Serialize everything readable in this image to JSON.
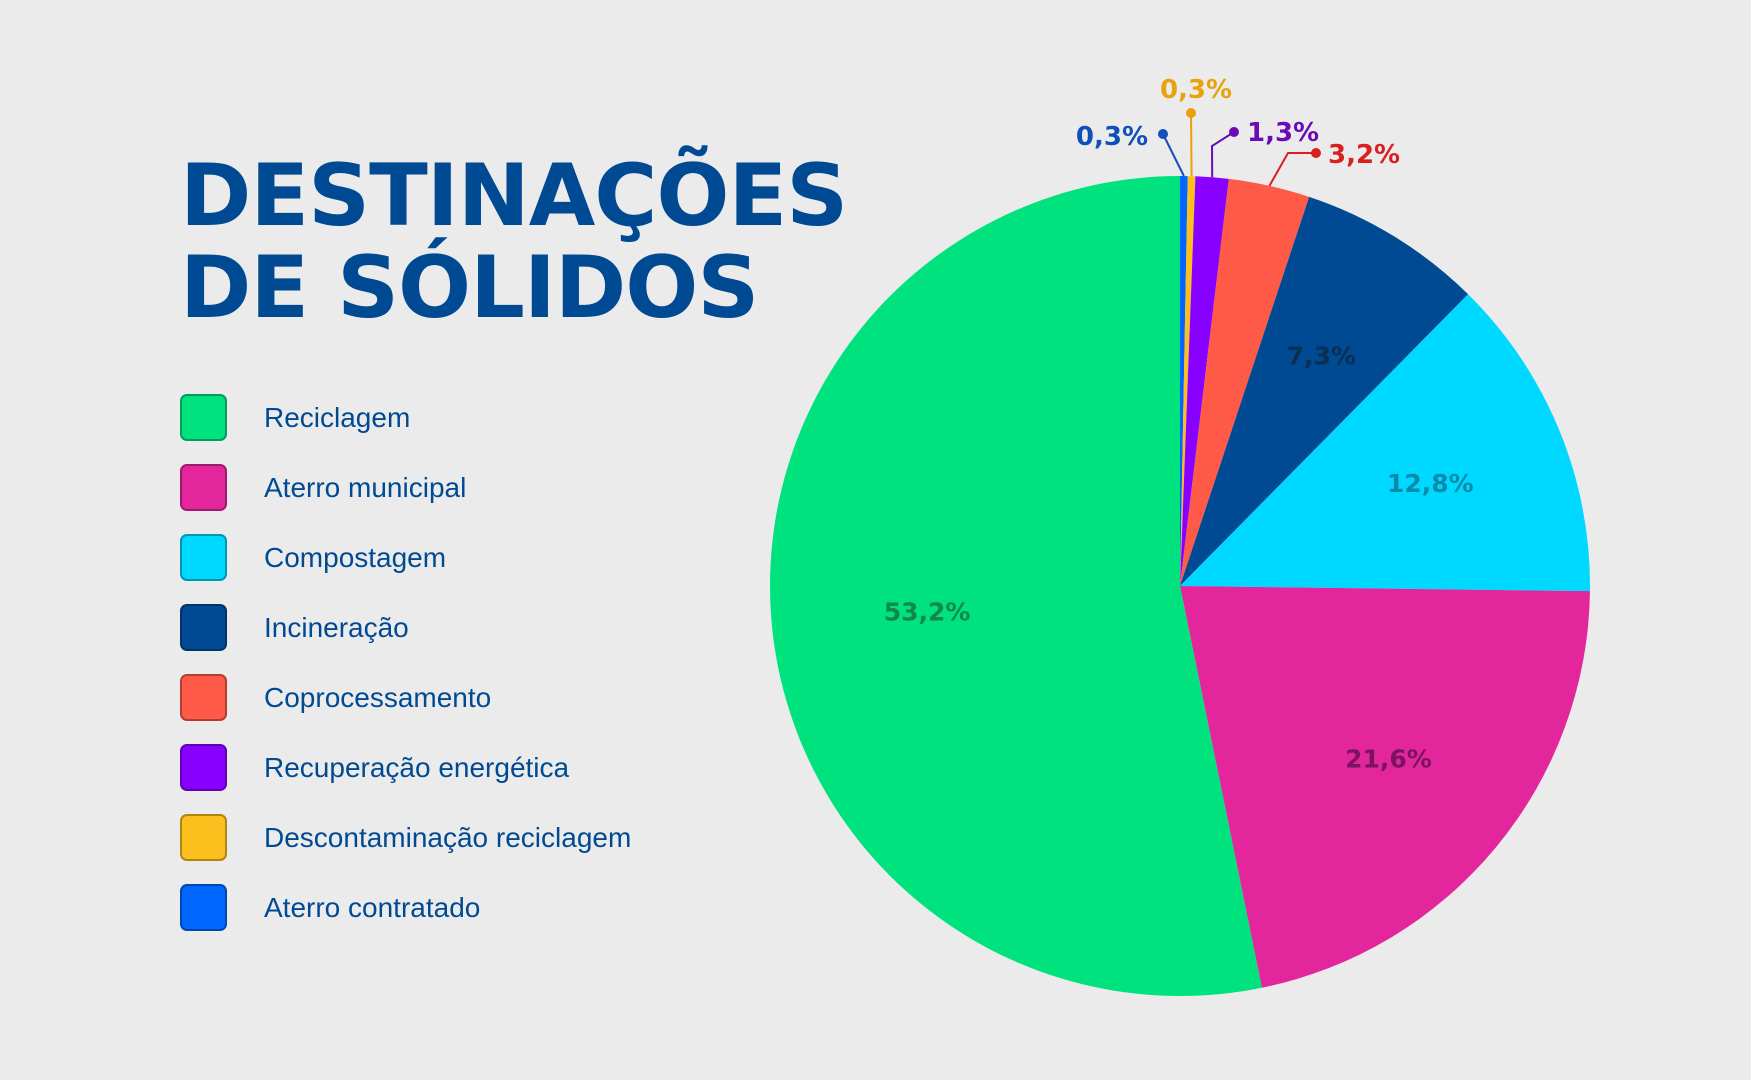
{
  "title_lines": [
    "DESTINAÇÕES",
    "DE SÓLIDOS"
  ],
  "chart_data": {
    "type": "pie",
    "title": "DESTINAÇÕES DE SÓLIDOS",
    "slices": [
      {
        "name": "Aterro contratado",
        "value": 0.3,
        "label": "0,3%",
        "color": "#0066ff",
        "label_color": "#0f4fb8"
      },
      {
        "name": "Descontaminação reciclagem",
        "value": 0.3,
        "label": "0,3%",
        "color": "#fbbf1e",
        "label_color": "#e8a20c"
      },
      {
        "name": "Recuperação energética",
        "value": 1.3,
        "label": "1,3%",
        "color": "#8800ff",
        "label_color": "#6a0bb5"
      },
      {
        "name": "Coprocessamento",
        "value": 3.2,
        "label": "3,2%",
        "color": "#ff5a47",
        "label_color": "#d91f1f"
      },
      {
        "name": "Incineração",
        "value": 7.3,
        "label": "7,3%",
        "color": "#004a93",
        "label_color": "#0b2f52"
      },
      {
        "name": "Compostagem",
        "value": 12.8,
        "label": "12,8%",
        "color": "#00d9ff",
        "label_color": "#0a8aaa"
      },
      {
        "name": "Aterro municipal",
        "value": 21.6,
        "label": "21,6%",
        "color": "#e3269b",
        "label_color": "#7a1460"
      },
      {
        "name": "Reciclagem",
        "value": 53.2,
        "label": "53,2%",
        "color": "#00e27e",
        "label_color": "#11864e"
      }
    ]
  },
  "legend": [
    {
      "label": "Reciclagem",
      "color": "#00e27e"
    },
    {
      "label": "Aterro municipal",
      "color": "#e3269b"
    },
    {
      "label": "Compostagem",
      "color": "#00d9ff"
    },
    {
      "label": "Incineração",
      "color": "#004a93"
    },
    {
      "label": "Coprocessamento",
      "color": "#ff5a47"
    },
    {
      "label": "Recuperação energética",
      "color": "#8800ff"
    },
    {
      "label": "Descontaminação reciclagem",
      "color": "#fbbf1e"
    },
    {
      "label": "Aterro contratado",
      "color": "#0066ff"
    }
  ]
}
